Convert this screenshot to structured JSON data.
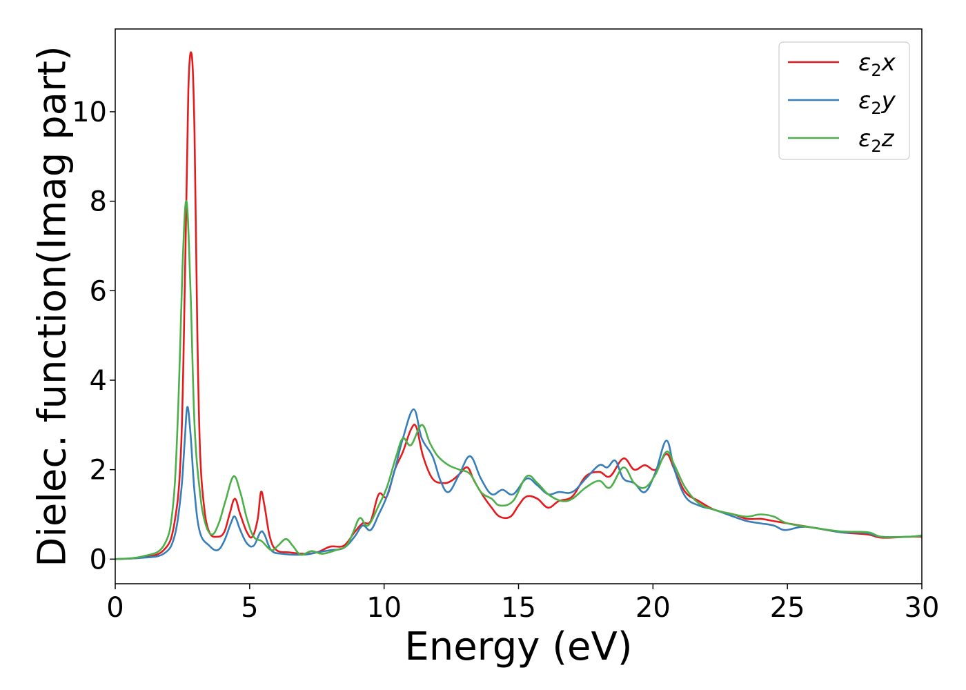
{
  "chart_data": {
    "type": "line",
    "title": "",
    "xlabel": "Energy (eV)",
    "ylabel": "Dielec. function(Imag part)",
    "xlim": [
      0,
      30
    ],
    "ylim": [
      -0.55,
      11.85
    ],
    "xticks": [
      0,
      5,
      10,
      15,
      20,
      25,
      30
    ],
    "yticks": [
      0,
      2,
      4,
      6,
      8,
      10
    ],
    "xtick_labels": [
      "0",
      "5",
      "10",
      "15",
      "20",
      "25",
      "30"
    ],
    "ytick_labels": [
      "0",
      "2",
      "4",
      "6",
      "8",
      "10"
    ],
    "grid": false,
    "legend_position": "top-right",
    "series": [
      {
        "name": "ε₂x",
        "symbol": "ε",
        "sub": "2",
        "axis_letter": "x",
        "color": "#e41a1c",
        "points": [
          [
            0,
            0
          ],
          [
            1,
            0.04
          ],
          [
            1.8,
            0.2
          ],
          [
            2.2,
            0.8
          ],
          [
            2.45,
            2.5
          ],
          [
            2.6,
            6.5
          ],
          [
            2.72,
            10.5
          ],
          [
            2.85,
            11.25
          ],
          [
            2.95,
            9.5
          ],
          [
            3.05,
            5.2
          ],
          [
            3.15,
            2.5
          ],
          [
            3.3,
            1.2
          ],
          [
            3.5,
            0.6
          ],
          [
            3.8,
            0.5
          ],
          [
            4.05,
            0.6
          ],
          [
            4.25,
            1.0
          ],
          [
            4.45,
            1.35
          ],
          [
            4.65,
            1.0
          ],
          [
            4.9,
            0.6
          ],
          [
            5.1,
            0.5
          ],
          [
            5.3,
            0.9
          ],
          [
            5.42,
            1.5
          ],
          [
            5.55,
            1.2
          ],
          [
            5.75,
            0.5
          ],
          [
            6.0,
            0.2
          ],
          [
            6.5,
            0.15
          ],
          [
            7.0,
            0.12
          ],
          [
            7.5,
            0.15
          ],
          [
            8.0,
            0.28
          ],
          [
            8.5,
            0.3
          ],
          [
            8.9,
            0.6
          ],
          [
            9.2,
            0.8
          ],
          [
            9.5,
            0.85
          ],
          [
            9.8,
            1.45
          ],
          [
            10.1,
            1.4
          ],
          [
            10.4,
            2.0
          ],
          [
            10.7,
            2.4
          ],
          [
            11.0,
            2.9
          ],
          [
            11.2,
            2.95
          ],
          [
            11.45,
            2.3
          ],
          [
            11.8,
            1.8
          ],
          [
            12.2,
            1.7
          ],
          [
            12.5,
            1.75
          ],
          [
            12.8,
            1.9
          ],
          [
            13.1,
            2.05
          ],
          [
            13.35,
            1.75
          ],
          [
            13.7,
            1.4
          ],
          [
            14.0,
            1.15
          ],
          [
            14.3,
            0.95
          ],
          [
            14.7,
            0.95
          ],
          [
            15.0,
            1.2
          ],
          [
            15.3,
            1.4
          ],
          [
            15.7,
            1.35
          ],
          [
            16.1,
            1.15
          ],
          [
            16.5,
            1.3
          ],
          [
            17.0,
            1.4
          ],
          [
            17.5,
            1.85
          ],
          [
            18.0,
            1.95
          ],
          [
            18.4,
            1.85
          ],
          [
            18.9,
            2.25
          ],
          [
            19.3,
            2.0
          ],
          [
            19.7,
            2.1
          ],
          [
            20.1,
            2.0
          ],
          [
            20.5,
            2.35
          ],
          [
            20.8,
            2.0
          ],
          [
            21.2,
            1.5
          ],
          [
            21.7,
            1.3
          ],
          [
            22.3,
            1.1
          ],
          [
            23.0,
            1.0
          ],
          [
            23.5,
            0.9
          ],
          [
            24.0,
            0.9
          ],
          [
            24.5,
            0.85
          ],
          [
            25.0,
            0.8
          ],
          [
            26.0,
            0.7
          ],
          [
            27.0,
            0.6
          ],
          [
            28.0,
            0.55
          ],
          [
            28.5,
            0.48
          ],
          [
            29.5,
            0.5
          ],
          [
            30,
            0.5
          ]
        ]
      },
      {
        "name": "ε₂y",
        "symbol": "ε",
        "sub": "2",
        "axis_letter": "y",
        "color": "#377eb8",
        "points": [
          [
            0,
            0
          ],
          [
            1,
            0.03
          ],
          [
            1.8,
            0.12
          ],
          [
            2.2,
            0.5
          ],
          [
            2.45,
            1.5
          ],
          [
            2.58,
            2.6
          ],
          [
            2.68,
            3.4
          ],
          [
            2.8,
            2.8
          ],
          [
            2.95,
            1.5
          ],
          [
            3.15,
            0.6
          ],
          [
            3.5,
            0.3
          ],
          [
            3.8,
            0.2
          ],
          [
            4.05,
            0.4
          ],
          [
            4.3,
            0.8
          ],
          [
            4.45,
            0.95
          ],
          [
            4.65,
            0.65
          ],
          [
            4.9,
            0.35
          ],
          [
            5.15,
            0.3
          ],
          [
            5.4,
            0.6
          ],
          [
            5.55,
            0.55
          ],
          [
            5.8,
            0.2
          ],
          [
            6.2,
            0.12
          ],
          [
            7.0,
            0.1
          ],
          [
            7.5,
            0.15
          ],
          [
            8.0,
            0.2
          ],
          [
            8.5,
            0.25
          ],
          [
            8.9,
            0.5
          ],
          [
            9.2,
            0.75
          ],
          [
            9.5,
            0.65
          ],
          [
            9.8,
            1.0
          ],
          [
            10.1,
            1.4
          ],
          [
            10.4,
            2.0
          ],
          [
            10.7,
            2.7
          ],
          [
            11.1,
            3.35
          ],
          [
            11.4,
            2.7
          ],
          [
            11.8,
            2.3
          ],
          [
            12.1,
            1.75
          ],
          [
            12.4,
            1.5
          ],
          [
            12.8,
            1.9
          ],
          [
            13.2,
            2.3
          ],
          [
            13.6,
            1.8
          ],
          [
            14.0,
            1.45
          ],
          [
            14.4,
            1.55
          ],
          [
            14.8,
            1.45
          ],
          [
            15.3,
            1.8
          ],
          [
            15.7,
            1.65
          ],
          [
            16.1,
            1.45
          ],
          [
            16.5,
            1.5
          ],
          [
            17.0,
            1.5
          ],
          [
            17.5,
            1.8
          ],
          [
            18.0,
            2.1
          ],
          [
            18.3,
            2.05
          ],
          [
            18.6,
            2.2
          ],
          [
            18.9,
            1.8
          ],
          [
            19.3,
            1.7
          ],
          [
            19.7,
            1.5
          ],
          [
            20.1,
            1.95
          ],
          [
            20.5,
            2.65
          ],
          [
            20.8,
            2.0
          ],
          [
            21.2,
            1.4
          ],
          [
            21.7,
            1.2
          ],
          [
            22.3,
            1.1
          ],
          [
            23.0,
            0.95
          ],
          [
            23.5,
            0.85
          ],
          [
            24.0,
            0.8
          ],
          [
            24.5,
            0.75
          ],
          [
            24.9,
            0.65
          ],
          [
            25.5,
            0.72
          ],
          [
            26.0,
            0.7
          ],
          [
            27.0,
            0.6
          ],
          [
            27.5,
            0.6
          ],
          [
            28.0,
            0.58
          ],
          [
            28.5,
            0.5
          ],
          [
            29.5,
            0.5
          ],
          [
            30,
            0.52
          ]
        ]
      },
      {
        "name": "ε₂z",
        "symbol": "ε",
        "sub": "2",
        "axis_letter": "z",
        "color": "#4daf4a",
        "points": [
          [
            0,
            0
          ],
          [
            1,
            0.06
          ],
          [
            1.8,
            0.3
          ],
          [
            2.15,
            1.2
          ],
          [
            2.35,
            3.5
          ],
          [
            2.5,
            6.5
          ],
          [
            2.65,
            8.0
          ],
          [
            2.8,
            6.0
          ],
          [
            2.95,
            3.0
          ],
          [
            3.15,
            1.5
          ],
          [
            3.35,
            0.8
          ],
          [
            3.6,
            0.55
          ],
          [
            3.85,
            0.8
          ],
          [
            4.1,
            1.3
          ],
          [
            4.4,
            1.85
          ],
          [
            4.65,
            1.5
          ],
          [
            4.9,
            0.9
          ],
          [
            5.15,
            0.5
          ],
          [
            5.45,
            0.4
          ],
          [
            5.8,
            0.2
          ],
          [
            6.05,
            0.3
          ],
          [
            6.35,
            0.45
          ],
          [
            6.6,
            0.3
          ],
          [
            6.9,
            0.1
          ],
          [
            7.3,
            0.18
          ],
          [
            7.7,
            0.12
          ],
          [
            8.2,
            0.2
          ],
          [
            8.6,
            0.3
          ],
          [
            8.85,
            0.6
          ],
          [
            9.1,
            0.92
          ],
          [
            9.4,
            0.75
          ],
          [
            9.8,
            1.2
          ],
          [
            10.1,
            1.6
          ],
          [
            10.45,
            2.3
          ],
          [
            10.7,
            2.7
          ],
          [
            11.0,
            2.55
          ],
          [
            11.4,
            3.0
          ],
          [
            11.7,
            2.6
          ],
          [
            12.0,
            2.3
          ],
          [
            12.4,
            2.1
          ],
          [
            12.8,
            2.0
          ],
          [
            13.2,
            1.9
          ],
          [
            13.6,
            1.5
          ],
          [
            14.0,
            1.35
          ],
          [
            14.3,
            1.2
          ],
          [
            14.8,
            1.3
          ],
          [
            15.3,
            1.85
          ],
          [
            15.7,
            1.7
          ],
          [
            16.1,
            1.45
          ],
          [
            16.6,
            1.3
          ],
          [
            17.0,
            1.35
          ],
          [
            17.5,
            1.6
          ],
          [
            18.0,
            1.75
          ],
          [
            18.4,
            1.6
          ],
          [
            18.9,
            2.05
          ],
          [
            19.3,
            1.7
          ],
          [
            19.7,
            1.6
          ],
          [
            20.1,
            1.9
          ],
          [
            20.5,
            2.4
          ],
          [
            20.8,
            2.1
          ],
          [
            21.2,
            1.6
          ],
          [
            21.7,
            1.25
          ],
          [
            22.3,
            1.1
          ],
          [
            23.0,
            1.0
          ],
          [
            23.5,
            0.95
          ],
          [
            24.0,
            1.0
          ],
          [
            24.5,
            0.95
          ],
          [
            25.0,
            0.8
          ],
          [
            26.0,
            0.7
          ],
          [
            27.0,
            0.62
          ],
          [
            28.0,
            0.6
          ],
          [
            28.5,
            0.5
          ],
          [
            29.5,
            0.5
          ],
          [
            30,
            0.53
          ]
        ]
      }
    ]
  }
}
